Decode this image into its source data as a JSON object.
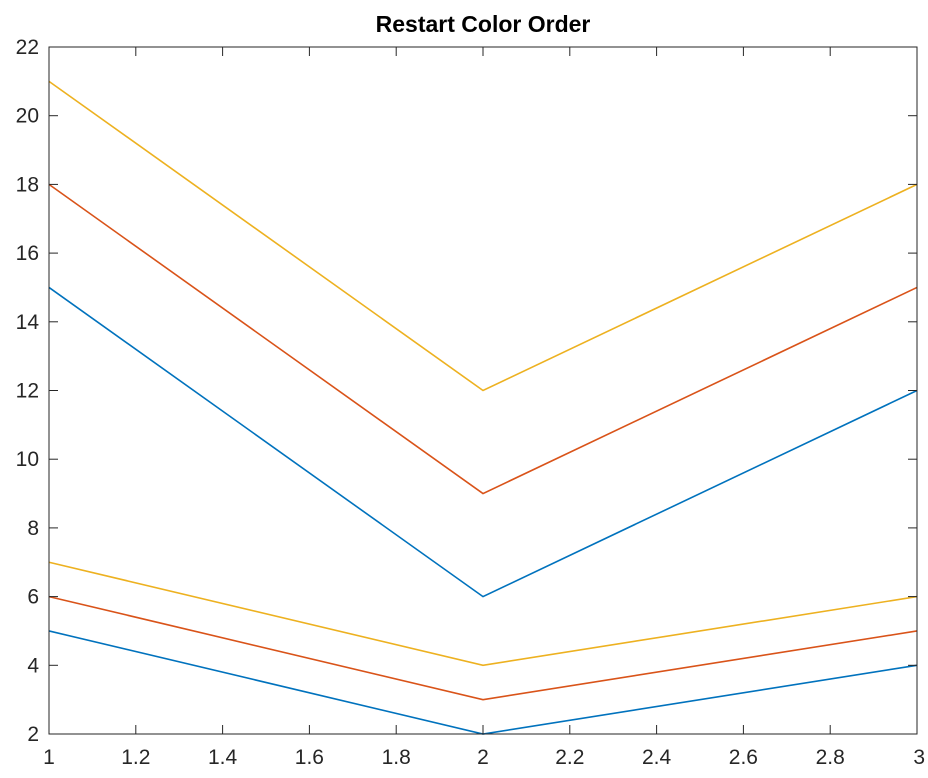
{
  "chart_data": {
    "type": "line",
    "title": "Restart Color Order",
    "xlabel": "",
    "ylabel": "",
    "xlim": [
      1,
      3
    ],
    "ylim": [
      2,
      22
    ],
    "x": [
      1,
      2,
      3
    ],
    "xticks": [
      1,
      1.2,
      1.4,
      1.6,
      1.8,
      2,
      2.2,
      2.4,
      2.6,
      2.8,
      3
    ],
    "xtick_labels": [
      "1",
      "1.2",
      "1.4",
      "1.6",
      "1.8",
      "2",
      "2.2",
      "2.4",
      "2.6",
      "2.8",
      "3"
    ],
    "yticks": [
      2,
      4,
      6,
      8,
      10,
      12,
      14,
      16,
      18,
      20,
      22
    ],
    "ytick_labels": [
      "2",
      "4",
      "6",
      "8",
      "10",
      "12",
      "14",
      "16",
      "18",
      "20",
      "22"
    ],
    "grid": false,
    "box": true,
    "series": [
      {
        "values": [
          5,
          2,
          4
        ],
        "color": "#0072BD"
      },
      {
        "values": [
          6,
          3,
          5
        ],
        "color": "#D95319"
      },
      {
        "values": [
          7,
          4,
          6
        ],
        "color": "#EDB120"
      },
      {
        "values": [
          15,
          6,
          12
        ],
        "color": "#0072BD"
      },
      {
        "values": [
          18,
          9,
          15
        ],
        "color": "#D95319"
      },
      {
        "values": [
          21,
          12,
          18
        ],
        "color": "#EDB120"
      }
    ]
  },
  "colors": {
    "axes": "#262626",
    "background": "#ffffff"
  }
}
